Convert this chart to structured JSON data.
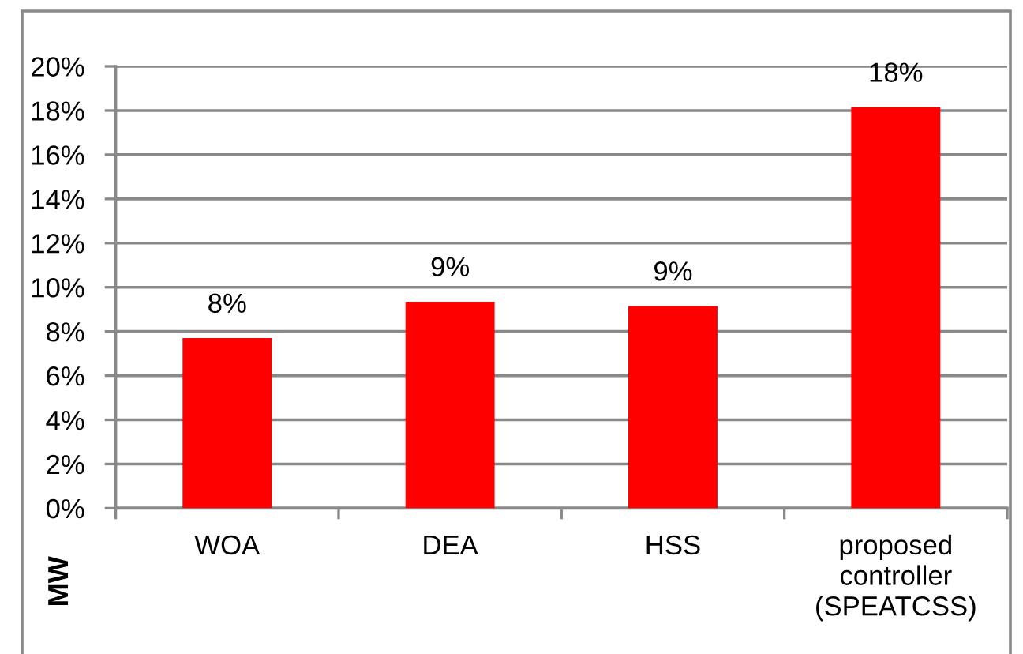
{
  "chart_data": {
    "type": "bar",
    "categories": [
      "WOA",
      "DEA",
      "HSS",
      "proposed controller (SPEATCSS)"
    ],
    "values": [
      7.7,
      9.35,
      9.15,
      18.15
    ],
    "color": "#ff0000",
    "value_labels": [
      "8%",
      "9%",
      "9%",
      "18%"
    ],
    "ylabel": "MW",
    "ylim": [
      0,
      20
    ],
    "yticks": [
      {
        "value": 0,
        "label": "0%"
      },
      {
        "value": 2,
        "label": "2%"
      },
      {
        "value": 4,
        "label": "4%"
      },
      {
        "value": 6,
        "label": "6%"
      },
      {
        "value": 8,
        "label": "8%"
      },
      {
        "value": 10,
        "label": "10%"
      },
      {
        "value": 12,
        "label": "12%"
      },
      {
        "value": 14,
        "label": "14%"
      },
      {
        "value": 16,
        "label": "16%"
      },
      {
        "value": 18,
        "label": "18%"
      },
      {
        "value": 20,
        "label": "20%"
      }
    ],
    "grid": "y"
  }
}
